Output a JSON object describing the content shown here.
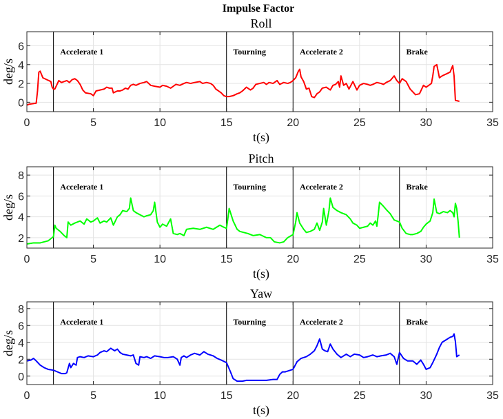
{
  "figure_title": "Impulse Factor",
  "chart_data": [
    {
      "type": "line",
      "title": "Roll",
      "xlabel": "t(s)",
      "ylabel": "deg/s",
      "xlim": [
        0,
        35
      ],
      "ylim": [
        -1,
        7.5
      ],
      "xticks": [
        0,
        5,
        10,
        15,
        20,
        25,
        30,
        35
      ],
      "yticks": [
        0,
        2,
        4,
        6
      ],
      "grid": true,
      "color": "#ff0000",
      "phase_lines": [
        2,
        15,
        20,
        28
      ],
      "phase_labels": [
        {
          "x": 2.5,
          "text": "Accelerate 1"
        },
        {
          "x": 15.5,
          "text": "Tourning"
        },
        {
          "x": 20.5,
          "text": "Accelerate 2"
        },
        {
          "x": 28.5,
          "text": "Brake"
        }
      ],
      "series": [
        {
          "x": [
            0,
            0.2,
            0.7,
            0.8,
            0.9,
            1.0,
            1.2,
            1.5,
            1.8,
            1.9,
            2.0,
            2.1,
            2.4,
            2.6,
            2.8,
            3.0,
            3.2,
            3.4,
            3.6,
            3.8,
            4.0,
            4.2,
            4.4,
            4.8,
            5.0,
            5.2,
            5.5,
            5.8,
            6.0,
            6.2,
            6.4,
            6.5,
            6.8,
            7.0,
            7.2,
            7.4,
            7.6,
            7.8,
            8.0,
            8.2,
            8.5,
            8.8,
            9.0,
            9.3,
            9.6,
            10.0,
            10.2,
            10.5,
            10.8,
            11.0,
            11.2,
            11.5,
            11.8,
            12.0,
            12.3,
            12.6,
            13.0,
            13.2,
            13.5,
            13.8,
            14.0,
            14.2,
            14.4,
            14.6,
            14.8,
            15.0,
            15.2,
            15.5,
            15.8,
            16.0,
            16.2,
            16.5,
            16.8,
            17.0,
            17.2,
            17.5,
            17.8,
            18.0,
            18.2,
            18.5,
            18.8,
            19.0,
            19.3,
            19.6,
            19.8,
            20.0,
            20.2,
            20.4,
            20.5,
            20.6,
            20.8,
            21.0,
            21.2,
            21.4,
            21.6,
            21.8,
            22.0,
            22.2,
            22.5,
            22.8,
            23.0,
            23.2,
            23.4,
            23.5,
            23.6,
            23.8,
            24.0,
            24.2,
            24.5,
            24.8,
            25.0,
            25.3,
            25.6,
            25.8,
            26.0,
            26.3,
            26.6,
            26.8,
            27.0,
            27.3,
            27.6,
            27.8,
            28.0,
            28.2,
            28.5,
            28.8,
            29.0,
            29.2,
            29.5,
            29.8,
            30.0,
            30.2,
            30.4,
            30.5,
            30.6,
            30.8,
            31.0,
            31.2,
            31.5,
            31.8,
            32.0,
            32.1,
            32.2,
            32.5
          ],
          "y": [
            -0.3,
            -0.2,
            -0.1,
            1.2,
            3.2,
            3.3,
            2.6,
            2.4,
            2.2,
            1.6,
            1.4,
            1.4,
            2.3,
            2.1,
            2.2,
            2.3,
            2.1,
            2.4,
            2.5,
            2.3,
            1.9,
            1.3,
            1.0,
            0.9,
            0.7,
            1.2,
            1.3,
            1.4,
            1.6,
            1.5,
            1.5,
            1.0,
            1.2,
            1.2,
            1.3,
            1.5,
            1.4,
            1.8,
            1.9,
            1.8,
            2.0,
            2.1,
            2.2,
            1.8,
            1.7,
            1.6,
            1.8,
            1.7,
            1.5,
            1.7,
            1.9,
            1.8,
            2.0,
            2.1,
            2.0,
            2.1,
            2.2,
            2.0,
            2.1,
            2.0,
            1.8,
            1.4,
            1.2,
            1.0,
            0.7,
            0.6,
            0.6,
            0.7,
            0.9,
            1.0,
            1.2,
            1.6,
            1.3,
            1.5,
            1.9,
            2.0,
            2.1,
            1.9,
            2.1,
            2.0,
            2.3,
            1.9,
            2.1,
            2.0,
            2.1,
            2.3,
            2.6,
            3.3,
            3.5,
            2.7,
            2.2,
            1.4,
            1.5,
            0.6,
            0.5,
            0.9,
            1.1,
            1.5,
            1.6,
            1.3,
            1.8,
            1.9,
            2.2,
            1.6,
            2.8,
            1.8,
            2.0,
            1.4,
            2.2,
            1.3,
            1.8,
            2.0,
            1.9,
            1.8,
            1.9,
            2.1,
            2.0,
            1.9,
            2.1,
            2.3,
            2.8,
            2.3,
            2.0,
            2.5,
            2.2,
            1.4,
            1.1,
            0.8,
            0.9,
            1.8,
            1.6,
            1.8,
            2.0,
            2.8,
            3.8,
            4.0,
            2.6,
            2.8,
            3.0,
            3.2,
            3.9,
            2.8,
            0.2,
            0.1
          ]
        }
      ]
    },
    {
      "type": "line",
      "title": "Pitch",
      "xlabel": "t(s)",
      "ylabel": "deg/s",
      "xlim": [
        0,
        35
      ],
      "ylim": [
        1.0,
        8.8
      ],
      "xticks": [
        0,
        5,
        10,
        15,
        20,
        25,
        30,
        35
      ],
      "yticks": [
        2,
        4,
        6,
        8
      ],
      "grid": true,
      "color": "#00ff00",
      "phase_lines": [
        2,
        15,
        20,
        28
      ],
      "phase_labels": [
        {
          "x": 2.5,
          "text": "Accelerate 1"
        },
        {
          "x": 15.5,
          "text": "Tourning"
        },
        {
          "x": 20.5,
          "text": "Accelerate 2"
        },
        {
          "x": 28.5,
          "text": "Brake"
        }
      ],
      "series": [
        {
          "x": [
            0,
            0.5,
            1.0,
            1.3,
            1.6,
            1.8,
            2.0,
            2.1,
            2.2,
            2.5,
            2.8,
            3.0,
            3.1,
            3.3,
            3.6,
            4.0,
            4.3,
            4.5,
            4.8,
            5.0,
            5.3,
            5.5,
            5.8,
            6.0,
            6.3,
            6.5,
            6.8,
            7.0,
            7.2,
            7.5,
            7.7,
            7.8,
            8.0,
            8.2,
            8.5,
            8.8,
            9.0,
            9.3,
            9.5,
            9.6,
            9.8,
            10.0,
            10.2,
            10.5,
            10.8,
            11.0,
            11.3,
            11.5,
            11.8,
            12.0,
            12.5,
            13.0,
            13.5,
            14.0,
            14.5,
            14.8,
            15.0,
            15.1,
            15.2,
            15.5,
            15.8,
            16.0,
            16.3,
            16.6,
            17.0,
            17.5,
            18.0,
            18.3,
            18.6,
            19.0,
            19.3,
            19.6,
            20.0,
            20.2,
            20.3,
            20.5,
            20.8,
            21.0,
            21.3,
            21.6,
            21.8,
            22.0,
            22.2,
            22.3,
            22.5,
            22.7,
            22.8,
            23.0,
            23.3,
            23.6,
            24.0,
            24.3,
            24.5,
            24.8,
            25.0,
            25.3,
            25.6,
            25.8,
            26.0,
            26.2,
            26.3,
            26.4,
            26.5,
            26.8,
            27.0,
            27.3,
            27.6,
            28.0,
            28.2,
            28.5,
            28.8,
            29.0,
            29.3,
            29.6,
            29.8,
            30.0,
            30.3,
            30.5,
            30.6,
            30.8,
            31.0,
            31.3,
            31.6,
            31.8,
            32.0,
            32.1,
            32.2,
            32.3,
            32.4,
            32.5
          ],
          "y": [
            1.4,
            1.5,
            1.5,
            1.6,
            1.7,
            1.9,
            2.1,
            3.2,
            2.9,
            2.6,
            2.2,
            2.0,
            3.5,
            3.2,
            3.4,
            3.6,
            3.3,
            3.8,
            3.5,
            3.6,
            3.9,
            3.4,
            3.6,
            3.5,
            3.9,
            3.2,
            4.0,
            4.2,
            4.6,
            4.5,
            4.8,
            5.8,
            4.6,
            4.4,
            4.2,
            4.0,
            4.1,
            4.2,
            4.6,
            5.4,
            3.5,
            3.0,
            3.3,
            3.1,
            3.8,
            2.4,
            2.3,
            2.4,
            2.2,
            2.8,
            2.9,
            2.8,
            3.0,
            2.8,
            3.2,
            3.0,
            2.9,
            3.8,
            4.8,
            3.6,
            2.8,
            2.6,
            2.5,
            2.4,
            2.2,
            2.3,
            2.0,
            2.0,
            1.6,
            1.5,
            1.6,
            2.0,
            2.3,
            3.5,
            4.4,
            3.4,
            2.8,
            2.5,
            2.6,
            2.8,
            3.4,
            2.7,
            3.5,
            4.8,
            3.2,
            4.6,
            5.8,
            4.9,
            4.6,
            4.4,
            4.2,
            3.8,
            3.4,
            3.2,
            2.9,
            3.0,
            3.1,
            3.4,
            3.2,
            3.6,
            3.1,
            4.2,
            5.4,
            5.0,
            4.7,
            4.3,
            3.7,
            3.5,
            2.9,
            2.4,
            2.3,
            2.3,
            2.4,
            2.6,
            3.0,
            3.3,
            3.6,
            4.4,
            5.7,
            4.4,
            4.3,
            4.5,
            4.4,
            4.6,
            4.4,
            4.0,
            5.3,
            4.8,
            3.6,
            2.0
          ]
        }
      ]
    },
    {
      "type": "line",
      "title": "Yaw",
      "xlabel": "t(s)",
      "ylabel": "deg/s",
      "xlim": [
        0,
        35
      ],
      "ylim": [
        -1.0,
        8.8
      ],
      "xticks": [
        0,
        5,
        10,
        15,
        20,
        25,
        30,
        35
      ],
      "yticks": [
        0,
        2,
        4,
        6,
        8
      ],
      "grid": true,
      "color": "#0000ff",
      "phase_lines": [
        2,
        15,
        20,
        28
      ],
      "phase_labels": [
        {
          "x": 2.5,
          "text": "Accelerate 1"
        },
        {
          "x": 15.5,
          "text": "Tourning"
        },
        {
          "x": 20.5,
          "text": "Accelerate 2"
        },
        {
          "x": 28.5,
          "text": "Brake"
        }
      ],
      "series": [
        {
          "x": [
            0,
            0.3,
            0.5,
            0.7,
            1.0,
            1.3,
            1.6,
            2.0,
            2.3,
            2.6,
            2.9,
            3.0,
            3.2,
            3.3,
            3.5,
            3.7,
            3.8,
            4.0,
            4.3,
            4.6,
            5.0,
            5.3,
            5.5,
            5.8,
            6.0,
            6.3,
            6.6,
            6.8,
            7.0,
            7.2,
            7.5,
            7.8,
            8.0,
            8.2,
            8.4,
            8.5,
            8.8,
            9.0,
            9.3,
            9.6,
            10.0,
            10.3,
            10.6,
            11.0,
            11.3,
            11.5,
            11.6,
            11.8,
            12.0,
            12.3,
            12.6,
            13.0,
            13.3,
            13.6,
            14.0,
            14.3,
            14.6,
            15.0,
            15.3,
            15.5,
            15.8,
            16.0,
            16.2,
            16.5,
            17.0,
            17.5,
            18.0,
            18.5,
            18.8,
            19.0,
            19.2,
            19.4,
            19.6,
            20.0,
            20.3,
            20.6,
            21.0,
            21.3,
            21.6,
            21.8,
            22.0,
            22.2,
            22.4,
            22.6,
            22.8,
            23.0,
            23.3,
            23.6,
            24.0,
            24.3,
            24.6,
            25.0,
            25.3,
            25.6,
            26.0,
            26.3,
            26.6,
            27.0,
            27.3,
            27.6,
            27.8,
            28.0,
            28.3,
            28.6,
            29.0,
            29.3,
            29.6,
            29.8,
            30.0,
            30.3,
            30.5,
            30.8,
            31.0,
            31.2,
            31.5,
            31.8,
            32.0,
            32.1,
            32.2,
            32.3,
            32.5
          ],
          "y": [
            1.8,
            1.9,
            2.1,
            1.8,
            1.3,
            1.0,
            0.8,
            0.7,
            0.5,
            0.3,
            0.3,
            0.4,
            1.5,
            1.0,
            1.5,
            1.3,
            2.2,
            2.3,
            2.2,
            2.4,
            2.3,
            2.5,
            2.8,
            3.0,
            2.9,
            3.3,
            3.0,
            3.2,
            2.8,
            2.6,
            2.5,
            2.4,
            2.5,
            1.5,
            1.3,
            2.3,
            2.2,
            2.3,
            2.1,
            2.4,
            2.3,
            2.2,
            2.2,
            2.3,
            2.0,
            1.3,
            2.2,
            2.4,
            2.2,
            2.5,
            2.7,
            2.5,
            2.9,
            2.6,
            2.4,
            2.1,
            1.9,
            1.6,
            0.5,
            -0.3,
            -0.6,
            -0.6,
            -0.6,
            -0.5,
            -0.5,
            -0.5,
            -0.5,
            -0.4,
            -0.4,
            0.2,
            0.5,
            0.5,
            0.6,
            0.8,
            1.7,
            2.1,
            2.3,
            2.6,
            3.0,
            3.6,
            4.4,
            3.2,
            3.0,
            2.9,
            3.8,
            3.2,
            2.6,
            2.2,
            2.6,
            2.3,
            2.6,
            2.5,
            2.2,
            2.3,
            2.5,
            2.3,
            2.4,
            2.5,
            2.7,
            2.3,
            1.4,
            2.8,
            2.1,
            1.8,
            1.8,
            1.4,
            1.9,
            1.4,
            0.8,
            1.0,
            1.6,
            2.6,
            3.4,
            4.0,
            4.3,
            4.6,
            4.7,
            5.0,
            4.1,
            2.3,
            2.5
          ]
        }
      ]
    }
  ]
}
